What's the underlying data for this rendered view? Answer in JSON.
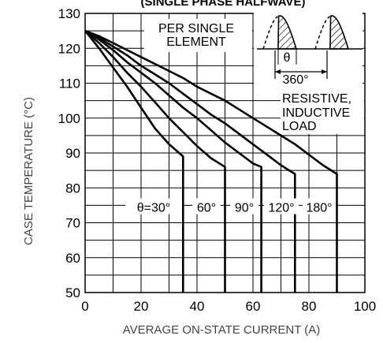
{
  "chart_data": {
    "type": "line",
    "title": "(SINGLE PHASE HALFWAVE)",
    "xlabel": "AVERAGE ON-STATE CURRENT (A)",
    "ylabel": "CASE TEMPERATURE (°C)",
    "xlim": [
      0,
      100
    ],
    "ylim": [
      50,
      130
    ],
    "x_ticks": [
      0,
      20,
      40,
      60,
      80,
      100
    ],
    "y_ticks": [
      50,
      60,
      70,
      80,
      90,
      100,
      110,
      120,
      130
    ],
    "grid": true,
    "annotations": {
      "per_element": "PER SINGLE ELEMENT",
      "theta_symbol": "θ",
      "period": "360°",
      "load": "RESISTIVE, INDUCTIVE LOAD"
    },
    "series": [
      {
        "label": "θ=30°",
        "x": [
          0,
          5,
          10,
          15,
          20,
          25,
          30,
          35,
          35
        ],
        "y": [
          125,
          120,
          114.5,
          109,
          103,
          97,
          92.5,
          89,
          50
        ]
      },
      {
        "label": "60°",
        "x": [
          0,
          5,
          10,
          15,
          20,
          25,
          30,
          35,
          40,
          45,
          50,
          50
        ],
        "y": [
          125,
          121.5,
          117.5,
          113,
          109,
          104.5,
          100,
          96,
          92,
          88.5,
          86,
          50
        ]
      },
      {
        "label": "90°",
        "x": [
          0,
          5,
          10,
          15,
          20,
          25,
          30,
          35,
          40,
          45,
          50,
          55,
          60,
          63,
          63
        ],
        "y": [
          125,
          122.5,
          119.5,
          116,
          113,
          110,
          106.5,
          103,
          100,
          96.5,
          93,
          90,
          87,
          86,
          50
        ]
      },
      {
        "label": "120°",
        "x": [
          0,
          5,
          10,
          15,
          20,
          25,
          30,
          35,
          40,
          45,
          50,
          55,
          60,
          65,
          70,
          75,
          75
        ],
        "y": [
          125,
          123,
          120.5,
          118,
          115,
          112.5,
          110,
          107,
          104,
          101,
          98.5,
          95.5,
          92.5,
          89.5,
          86.5,
          84,
          50
        ]
      },
      {
        "label": "180°",
        "x": [
          0,
          5,
          10,
          15,
          20,
          25,
          30,
          35,
          40,
          45,
          50,
          55,
          60,
          65,
          70,
          75,
          80,
          85,
          90,
          90
        ],
        "y": [
          125,
          123.5,
          121.5,
          119.5,
          117.5,
          115.5,
          113.5,
          111.5,
          109,
          107,
          105,
          102.5,
          100,
          97.5,
          95,
          92.5,
          89.5,
          86.5,
          84,
          50
        ]
      }
    ]
  }
}
